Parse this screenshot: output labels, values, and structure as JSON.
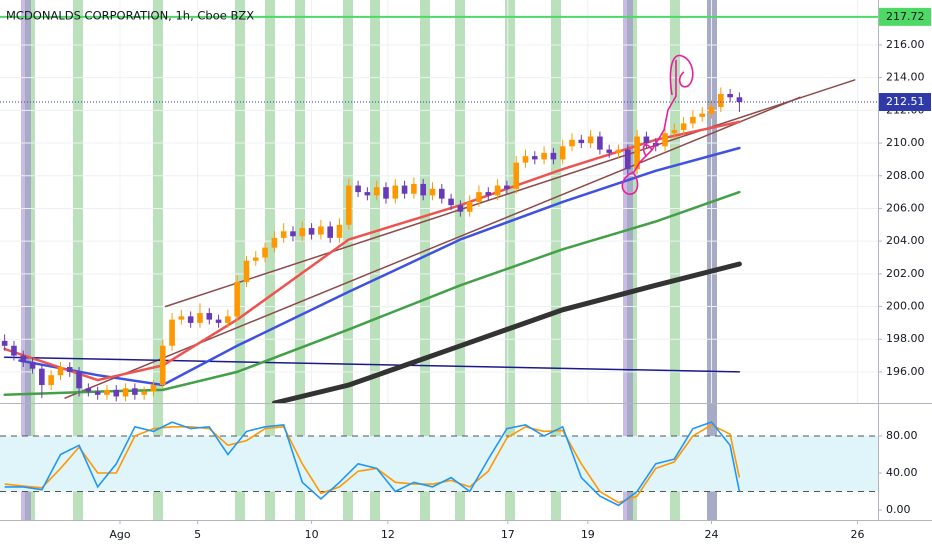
{
  "chart_data": {
    "type": "candlestick",
    "title": "MCDONALDS CORPORATION, 1h, Cboe BZX",
    "up_color": "#ff9800",
    "down_color": "#673ab7",
    "xlim": [
      -0.5,
      93.9
    ],
    "ylim": [
      194.1,
      218.75
    ],
    "xticks": [
      {
        "value": 12.4,
        "label": "Ago"
      },
      {
        "value": 20.75,
        "label": "5"
      },
      {
        "value": 33,
        "label": "10"
      },
      {
        "value": 41.2,
        "label": "12"
      },
      {
        "value": 54.1,
        "label": "17"
      },
      {
        "value": 62.7,
        "label": "19"
      },
      {
        "value": 76,
        "label": "24"
      },
      {
        "value": 91.7,
        "label": "26"
      }
    ],
    "yticks": [
      {
        "value": 196,
        "label": "196.00"
      },
      {
        "value": 198,
        "label": "198.00"
      },
      {
        "value": 200,
        "label": "200.00"
      },
      {
        "value": 202,
        "label": "202.00"
      },
      {
        "value": 204,
        "label": "204.00"
      },
      {
        "value": 206,
        "label": "206.00"
      },
      {
        "value": 208,
        "label": "208.00"
      },
      {
        "value": 210,
        "label": "210.00"
      },
      {
        "value": 212,
        "label": "212.00"
      },
      {
        "value": 214,
        "label": "214.00"
      },
      {
        "value": 216,
        "label": "216.00"
      }
    ],
    "grid": true,
    "candles": [
      [
        197.9,
        198.3,
        197.3,
        197.6
      ],
      [
        197.6,
        197.9,
        196.7,
        197.0
      ],
      [
        197.0,
        197.3,
        196.3,
        196.6
      ],
      [
        196.6,
        196.9,
        195.9,
        196.2
      ],
      [
        196.2,
        196.5,
        194.4,
        195.2
      ],
      [
        195.2,
        196.1,
        194.9,
        195.8
      ],
      [
        195.8,
        196.6,
        195.5,
        196.3
      ],
      [
        196.3,
        196.6,
        195.7,
        196.0
      ],
      [
        196.0,
        196.3,
        194.5,
        195.0
      ],
      [
        195.0,
        195.3,
        194.5,
        194.8
      ],
      [
        194.8,
        195.1,
        194.3,
        194.6
      ],
      [
        194.6,
        195.2,
        194.3,
        194.9
      ],
      [
        194.9,
        195.2,
        194.2,
        194.5
      ],
      [
        194.5,
        195.3,
        194.2,
        195.0
      ],
      [
        195.0,
        195.3,
        194.3,
        194.6
      ],
      [
        194.6,
        195.1,
        194.3,
        194.8
      ],
      [
        194.8,
        195.5,
        194.5,
        195.2
      ],
      [
        195.2,
        198.0,
        195.0,
        197.6
      ],
      [
        197.6,
        199.6,
        197.3,
        199.2
      ],
      [
        199.2,
        199.8,
        198.9,
        199.4
      ],
      [
        199.4,
        199.7,
        198.7,
        199.0
      ],
      [
        199.0,
        200.2,
        198.7,
        199.6
      ],
      [
        199.6,
        199.9,
        198.9,
        199.2
      ],
      [
        199.2,
        199.5,
        198.7,
        199.0
      ],
      [
        199.0,
        199.8,
        198.7,
        199.4
      ],
      [
        199.4,
        201.9,
        199.1,
        201.5
      ],
      [
        201.5,
        203.1,
        201.2,
        202.8
      ],
      [
        202.8,
        203.4,
        202.5,
        203.0
      ],
      [
        203.0,
        203.9,
        202.7,
        203.6
      ],
      [
        203.6,
        204.6,
        203.3,
        204.2
      ],
      [
        204.2,
        205.1,
        203.9,
        204.6
      ],
      [
        204.6,
        204.9,
        204.0,
        204.3
      ],
      [
        204.3,
        205.2,
        204.0,
        204.8
      ],
      [
        204.8,
        205.1,
        204.1,
        204.4
      ],
      [
        204.4,
        205.3,
        204.1,
        204.9
      ],
      [
        204.9,
        205.2,
        203.9,
        204.2
      ],
      [
        204.2,
        205.4,
        203.9,
        205.0
      ],
      [
        205.0,
        207.8,
        204.7,
        207.4
      ],
      [
        207.4,
        207.7,
        206.7,
        207.0
      ],
      [
        207.0,
        207.3,
        206.5,
        206.8
      ],
      [
        206.8,
        207.7,
        206.5,
        207.3
      ],
      [
        207.3,
        207.6,
        206.3,
        206.6
      ],
      [
        206.6,
        207.8,
        206.3,
        207.4
      ],
      [
        207.4,
        207.7,
        206.6,
        206.9
      ],
      [
        206.9,
        207.9,
        206.6,
        207.5
      ],
      [
        207.5,
        207.8,
        206.5,
        206.8
      ],
      [
        206.8,
        207.6,
        206.5,
        207.2
      ],
      [
        207.2,
        207.5,
        206.3,
        206.6
      ],
      [
        206.6,
        206.9,
        205.9,
        206.2
      ],
      [
        206.2,
        206.5,
        205.5,
        205.8
      ],
      [
        205.8,
        206.8,
        205.5,
        206.4
      ],
      [
        206.4,
        207.4,
        206.1,
        207.0
      ],
      [
        207.0,
        207.3,
        206.5,
        206.8
      ],
      [
        206.8,
        207.8,
        206.5,
        207.4
      ],
      [
        207.4,
        207.7,
        206.9,
        207.2
      ],
      [
        207.2,
        209.2,
        206.9,
        208.8
      ],
      [
        208.8,
        209.6,
        208.5,
        209.2
      ],
      [
        209.2,
        209.5,
        208.7,
        209.0
      ],
      [
        209.0,
        209.8,
        208.7,
        209.4
      ],
      [
        209.4,
        209.7,
        208.7,
        209.0
      ],
      [
        209.0,
        210.2,
        208.7,
        209.8
      ],
      [
        209.8,
        210.6,
        209.5,
        210.2
      ],
      [
        210.2,
        210.5,
        209.7,
        210.0
      ],
      [
        210.0,
        210.8,
        209.7,
        210.4
      ],
      [
        210.4,
        210.7,
        209.3,
        209.6
      ],
      [
        209.6,
        209.9,
        209.1,
        209.4
      ],
      [
        209.4,
        209.9,
        209.1,
        209.6
      ],
      [
        209.6,
        209.9,
        208.1,
        208.4
      ],
      [
        208.4,
        210.8,
        208.1,
        210.4
      ],
      [
        210.4,
        210.7,
        209.7,
        210.0
      ],
      [
        210.0,
        210.3,
        209.5,
        209.8
      ],
      [
        209.8,
        211.0,
        209.5,
        210.6
      ],
      [
        210.6,
        211.2,
        210.3,
        210.8
      ],
      [
        210.8,
        211.6,
        210.5,
        211.2
      ],
      [
        211.2,
        212.0,
        210.9,
        211.6
      ],
      [
        211.6,
        212.2,
        211.3,
        211.8
      ],
      [
        211.8,
        212.6,
        211.5,
        212.2
      ],
      [
        212.2,
        213.4,
        211.9,
        213.0
      ],
      [
        213.0,
        213.3,
        212.5,
        212.8
      ],
      [
        212.8,
        213.1,
        211.9,
        212.51
      ]
    ],
    "lines": [
      {
        "color": "#8d4a4a",
        "width": 1.5,
        "x": [
          17.3,
          91.4
        ],
        "values": [
          200.0,
          213.86
        ]
      },
      {
        "color": "#8d4a4a",
        "width": 1.5,
        "x": [
          6.5,
          85.5
        ],
        "values": [
          194.4,
          212.8
        ]
      },
      {
        "color": "#1a1a8c",
        "width": 1.5,
        "x": [
          0,
          79
        ],
        "values": [
          196.9,
          196.0
        ]
      },
      {
        "color": "#333333",
        "width": 5,
        "x": [
          29,
          37,
          49,
          60,
          70,
          79
        ],
        "values": [
          194.1,
          195.2,
          197.6,
          199.8,
          201.3,
          202.6
        ]
      },
      {
        "color": "#43a047",
        "width": 2.5,
        "x": [
          0,
          10,
          17,
          25,
          37,
          49,
          60,
          70,
          79
        ],
        "values": [
          194.6,
          194.8,
          194.9,
          196.0,
          198.6,
          201.3,
          203.5,
          205.2,
          207.0
        ]
      },
      {
        "color": "#3f51e0",
        "width": 2.5,
        "x": [
          1.6,
          10,
          17,
          25,
          37,
          49,
          60,
          70,
          79
        ],
        "values": [
          196.7,
          195.8,
          195.2,
          197.6,
          200.9,
          204.1,
          206.4,
          208.3,
          209.7
        ]
      },
      {
        "color": "#ef5350",
        "width": 2.5,
        "x": [
          0,
          10,
          17,
          25,
          37,
          49,
          60,
          70,
          79
        ],
        "values": [
          197.4,
          195.5,
          196.4,
          199.2,
          204.1,
          206.2,
          208.4,
          210.2,
          211.3
        ]
      }
    ],
    "price_lines": [
      {
        "value": 217.72,
        "color": "#4cd964",
        "text_color": "#131722",
        "dotted": false
      },
      {
        "value": 212.51,
        "color": "#2f3aa8",
        "text_color": "#ffffff",
        "dotted": true
      }
    ],
    "indicator": {
      "type": "line",
      "ylim": [
        -10.8,
        115.7
      ],
      "yticks": [
        {
          "value": 0,
          "label": "0.00"
        },
        {
          "value": 40,
          "label": "40.00"
        },
        {
          "value": 80,
          "label": "80.00"
        }
      ],
      "levels": [
        20,
        80
      ],
      "band_color": "#dff5fa",
      "x": [
        0,
        2,
        4,
        6,
        8,
        10,
        12,
        14,
        16,
        18,
        20,
        22,
        24,
        26,
        28,
        30,
        32,
        34,
        36,
        38,
        40,
        42,
        44,
        46,
        48,
        50,
        52,
        54,
        56,
        58,
        60,
        62,
        64,
        66,
        68,
        70,
        72,
        74,
        76,
        78,
        79
      ],
      "series": [
        {
          "color": "#2196f3",
          "values": [
            25,
            25,
            22,
            60,
            70,
            25,
            50,
            90,
            85,
            95,
            88,
            90,
            60,
            85,
            90,
            92,
            30,
            12,
            30,
            50,
            45,
            20,
            30,
            25,
            35,
            20,
            55,
            88,
            92,
            80,
            90,
            35,
            15,
            5,
            20,
            50,
            55,
            88,
            95,
            70,
            20
          ]
        },
        {
          "color": "#ff9800",
          "values": [
            28,
            26,
            24,
            45,
            68,
            40,
            40,
            80,
            88,
            90,
            90,
            88,
            70,
            75,
            88,
            90,
            50,
            18,
            25,
            42,
            45,
            30,
            28,
            28,
            32,
            25,
            42,
            78,
            90,
            85,
            86,
            50,
            20,
            8,
            15,
            45,
            52,
            80,
            92,
            82,
            35
          ]
        }
      ]
    }
  }
}
